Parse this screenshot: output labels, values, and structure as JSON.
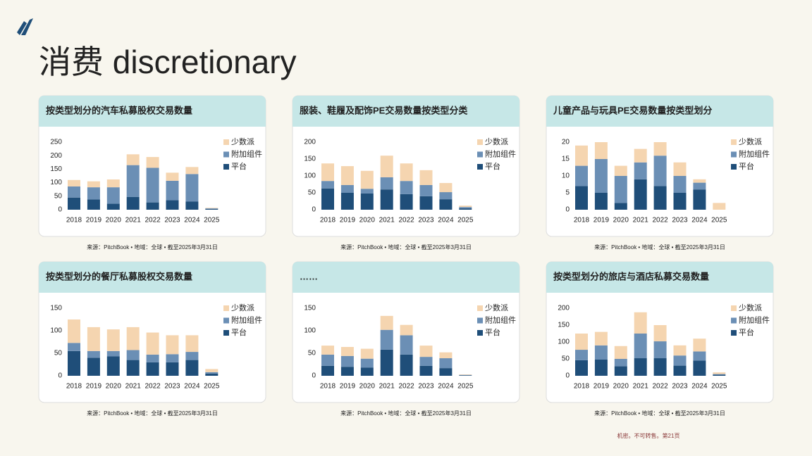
{
  "title": "消费 discretionary",
  "footer": "机密。不可转售。第21页",
  "chart_data": [
    {
      "type": "bar",
      "stacked": true,
      "title": "按类型划分的汽车私募股权交易数量",
      "source": "来源：PitchBook • 地域：全球 • 截至2025年3月31日",
      "categories": [
        "2018",
        "2019",
        "2020",
        "2021",
        "2022",
        "2023",
        "2024",
        "2025"
      ],
      "ylim": [
        0,
        250
      ],
      "yticks": [
        0,
        50,
        100,
        150,
        200,
        250
      ],
      "series": [
        {
          "name": "平台",
          "color": "#1f4e79",
          "values": [
            45,
            38,
            22,
            47,
            27,
            35,
            30,
            3
          ]
        },
        {
          "name": "附加组件",
          "color": "#6b8fb5",
          "values": [
            41,
            45,
            61,
            118,
            128,
            72,
            102,
            2
          ]
        },
        {
          "name": "少数派",
          "color": "#f5d5b0",
          "values": [
            24,
            22,
            29,
            40,
            40,
            30,
            26,
            2
          ]
        }
      ]
    },
    {
      "type": "bar",
      "stacked": true,
      "title": "服装、鞋履及配饰PE交易数量按类型分类",
      "source": "来源：PitchBook • 地域：全球 • 截至2025年3月31日",
      "categories": [
        "2018",
        "2019",
        "2020",
        "2021",
        "2022",
        "2023",
        "2024",
        "2025"
      ],
      "ylim": [
        0,
        200
      ],
      "yticks": [
        0,
        50,
        100,
        150,
        200
      ],
      "series": [
        {
          "name": "平台",
          "color": "#1f4e79",
          "values": [
            63,
            50,
            48,
            60,
            46,
            40,
            31,
            4
          ]
        },
        {
          "name": "附加组件",
          "color": "#6b8fb5",
          "values": [
            22,
            23,
            14,
            36,
            39,
            33,
            21,
            4
          ]
        },
        {
          "name": "少数派",
          "color": "#f5d5b0",
          "values": [
            52,
            56,
            53,
            64,
            52,
            44,
            27,
            4
          ]
        }
      ]
    },
    {
      "type": "bar",
      "stacked": true,
      "title": "儿童产品与玩具PE交易数量按类型划分",
      "source": "来源：PitchBook • 地域：全球 • 截至2025年3月31日",
      "categories": [
        "2018",
        "2019",
        "2020",
        "2021",
        "2022",
        "2023",
        "2024",
        "2025"
      ],
      "ylim": [
        0,
        20
      ],
      "yticks": [
        0,
        5,
        10,
        15,
        20
      ],
      "series": [
        {
          "name": "平台",
          "color": "#1f4e79",
          "values": [
            7,
            5,
            2,
            9,
            7,
            5,
            6,
            0
          ]
        },
        {
          "name": "附加组件",
          "color": "#6b8fb5",
          "values": [
            6,
            10,
            8,
            5,
            9,
            5,
            2,
            0
          ]
        },
        {
          "name": "少数派",
          "color": "#f5d5b0",
          "values": [
            6,
            5,
            3,
            4,
            4,
            4,
            1,
            2
          ]
        }
      ]
    },
    {
      "type": "bar",
      "stacked": true,
      "title": "按类型划分的餐厅私募股权交易数量",
      "source": "来源：PitchBook • 地域：全球 • 截至2025年3月31日",
      "categories": [
        "2018",
        "2019",
        "2020",
        "2021",
        "2022",
        "2023",
        "2024",
        "2025"
      ],
      "ylim": [
        0,
        150
      ],
      "yticks": [
        0,
        50,
        100,
        150
      ],
      "series": [
        {
          "name": "平台",
          "color": "#1f4e79",
          "values": [
            55,
            40,
            43,
            35,
            30,
            30,
            35,
            5
          ]
        },
        {
          "name": "附加组件",
          "color": "#6b8fb5",
          "values": [
            18,
            15,
            12,
            22,
            17,
            18,
            18,
            3
          ]
        },
        {
          "name": "少数派",
          "color": "#f5d5b0",
          "values": [
            52,
            53,
            48,
            51,
            49,
            42,
            37,
            7
          ]
        }
      ]
    },
    {
      "type": "bar",
      "stacked": true,
      "title": "……",
      "source": "来源：PitchBook • 地域：全球 • 截至2025年3月31日",
      "categories": [
        "2018",
        "2019",
        "2020",
        "2021",
        "2022",
        "2023",
        "2024",
        "2025"
      ],
      "ylim": [
        0,
        150
      ],
      "yticks": [
        0,
        50,
        100,
        150
      ],
      "series": [
        {
          "name": "平台",
          "color": "#1f4e79",
          "values": [
            22,
            20,
            18,
            58,
            47,
            22,
            17,
            1
          ]
        },
        {
          "name": "附加组件",
          "color": "#6b8fb5",
          "values": [
            25,
            24,
            20,
            44,
            43,
            20,
            22,
            1
          ]
        },
        {
          "name": "少数派",
          "color": "#f5d5b0",
          "values": [
            20,
            20,
            22,
            31,
            23,
            25,
            13,
            1
          ]
        }
      ]
    },
    {
      "type": "bar",
      "stacked": true,
      "title": "按类型划分的旅店与酒店私募交易数量",
      "source": "来源：PitchBook • 地域：全球 • 截至2025年3月31日",
      "categories": [
        "2018",
        "2019",
        "2020",
        "2021",
        "2022",
        "2023",
        "2024",
        "2025"
      ],
      "ylim": [
        0,
        200
      ],
      "yticks": [
        0,
        50,
        100,
        150,
        200
      ],
      "series": [
        {
          "name": "平台",
          "color": "#1f4e79",
          "values": [
            46,
            48,
            28,
            52,
            52,
            30,
            45,
            3
          ]
        },
        {
          "name": "附加组件",
          "color": "#6b8fb5",
          "values": [
            31,
            42,
            22,
            73,
            50,
            30,
            27,
            2
          ]
        },
        {
          "name": "少数派",
          "color": "#f5d5b0",
          "values": [
            48,
            40,
            38,
            63,
            48,
            30,
            38,
            5
          ]
        }
      ]
    }
  ]
}
